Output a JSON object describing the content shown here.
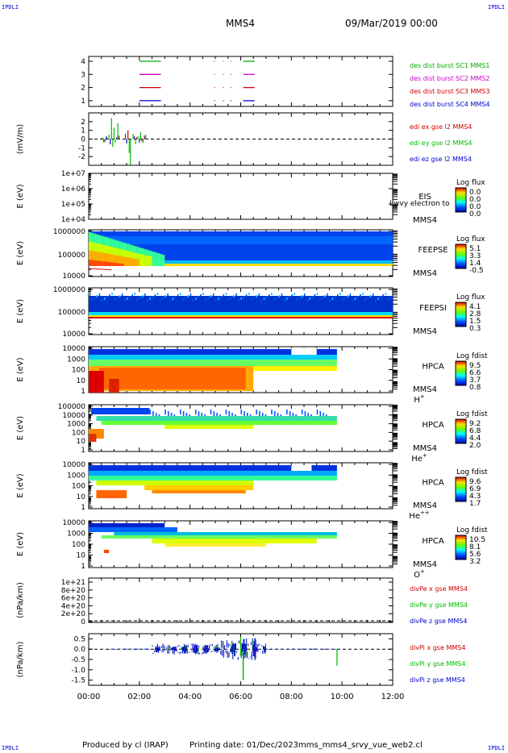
{
  "header": {
    "corner_left_top": "IPDLI",
    "corner_right_top": "IPDLI",
    "corner_left_bottom": "IPDLI",
    "corner_right_bottom": "IPDLI",
    "spacecraft": "MMS4",
    "date": "09/Mar/2019 00:00"
  },
  "footer": {
    "produced": "Produced by cl (IRAP)",
    "printing": "Printing date: 01/Dec/2023",
    "file": "mms_mms4_srvy_vue_web2.cl"
  },
  "colors": {
    "mms1": "#00aa00",
    "mms2": "#cc00cc",
    "mms3": "#cc0000",
    "mms4": "#0000cc",
    "ex": "#cc0000",
    "ey": "#00bb00",
    "ez": "#0000cc"
  },
  "chart_data": [
    {
      "id": "burst",
      "type": "line",
      "yticks": [
        "4",
        "3",
        "2",
        "1"
      ],
      "legend": [
        "des dist burst SC1 MMS1",
        "des dist burst SC2 MMS2",
        "des dist burst SC3 MMS3",
        "des dist burst SC4 MMS4"
      ],
      "series": [
        {
          "name": "des dist burst SC1 MMS1",
          "level": 4,
          "segments": [
            [
              2.0,
              2.85
            ],
            [
              4.95,
              4.98
            ],
            [
              5.3,
              5.33
            ],
            [
              5.6,
              5.63
            ],
            [
              6.1,
              6.55
            ]
          ]
        },
        {
          "name": "des dist burst SC2 MMS2",
          "level": 3,
          "segments": [
            [
              2.0,
              2.85
            ],
            [
              4.95,
              4.98
            ],
            [
              5.3,
              5.33
            ],
            [
              5.6,
              5.63
            ],
            [
              6.1,
              6.55
            ]
          ]
        },
        {
          "name": "des dist burst SC3 MMS3",
          "level": 2,
          "segments": [
            [
              2.0,
              2.85
            ],
            [
              4.95,
              4.98
            ],
            [
              5.3,
              5.33
            ],
            [
              5.6,
              5.63
            ],
            [
              6.1,
              6.55
            ]
          ]
        },
        {
          "name": "des dist burst SC4 MMS4",
          "level": 1,
          "segments": [
            [
              2.0,
              2.85
            ],
            [
              4.95,
              4.98
            ],
            [
              5.3,
              5.33
            ],
            [
              5.6,
              5.63
            ],
            [
              6.1,
              6.55
            ]
          ]
        }
      ]
    },
    {
      "id": "edi",
      "type": "line",
      "ylabel": "(mV/m)",
      "yticks": [
        "2",
        "1",
        "0",
        "-1",
        "-2"
      ],
      "ylim": [
        -3,
        3
      ],
      "legend": [
        "edi ex gse l2 MMS4",
        "edi ey gse l2 MMS4",
        "edi ez gse l2 MMS4"
      ],
      "series": [
        {
          "name": "edi ex gse l2 MMS4",
          "points": [
            [
              0.5,
              0.1
            ],
            [
              0.6,
              -0.4
            ],
            [
              0.7,
              0.3
            ],
            [
              1.2,
              0.4
            ],
            [
              1.45,
              0.6
            ],
            [
              1.55,
              1.0
            ],
            [
              1.9,
              0.2
            ],
            [
              2.1,
              -0.3
            ],
            [
              2.2,
              0.4
            ]
          ]
        },
        {
          "name": "edi ey gse l2 MMS4",
          "points": [
            [
              0.55,
              0.2
            ],
            [
              0.65,
              -0.3
            ],
            [
              0.8,
              0.5
            ],
            [
              0.9,
              2.4
            ],
            [
              0.95,
              -0.9
            ],
            [
              1.0,
              1.3
            ],
            [
              1.05,
              -0.4
            ],
            [
              1.15,
              1.8
            ],
            [
              1.6,
              -1.6
            ],
            [
              1.65,
              -3.0
            ],
            [
              1.75,
              0.6
            ],
            [
              1.85,
              -0.6
            ],
            [
              1.95,
              0.3
            ],
            [
              2.05,
              0.8
            ],
            [
              2.15,
              -0.4
            ],
            [
              2.25,
              0.5
            ]
          ]
        },
        {
          "name": "edi ez gse l2 MMS4",
          "points": [
            [
              0.6,
              -0.2
            ],
            [
              0.7,
              0.3
            ],
            [
              0.85,
              -0.6
            ],
            [
              1.1,
              0.2
            ],
            [
              1.5,
              -0.5
            ],
            [
              1.8,
              0.3
            ],
            [
              2.0,
              -0.4
            ],
            [
              2.2,
              0.2
            ]
          ]
        }
      ]
    },
    {
      "id": "eis",
      "type": "heatmap",
      "ylabel": "E (eV)",
      "yticks": [
        "1e+07",
        "1e+06",
        "1e+05",
        "1e+04"
      ],
      "instrument": "EIS",
      "overlay": "Lwvy electron to",
      "spacecraft": "MMS4",
      "colorbar_title": "Log flux",
      "colorbar_ticks": [
        "0.0",
        "0.0",
        "0.0",
        "0.0"
      ]
    },
    {
      "id": "feepse",
      "type": "heatmap",
      "ylabel": "E (eV)",
      "yticks": [
        "1000000",
        "100000",
        "10000"
      ],
      "instrument": "FEEPSE",
      "spacecraft": "MMS4",
      "colorbar_title": "Log flux",
      "colorbar_ticks": [
        "5.1",
        "3.3",
        "1.4",
        "-0.5"
      ]
    },
    {
      "id": "feepsi",
      "type": "heatmap",
      "ylabel": "E (eV)",
      "yticks": [
        "1000000",
        "100000",
        "10000"
      ],
      "instrument": "FEEPSI",
      "spacecraft": "MMS4",
      "colorbar_title": "Log flux",
      "colorbar_ticks": [
        "4.1",
        "2.8",
        "1.5",
        "0.3"
      ]
    },
    {
      "id": "hpca_h",
      "type": "heatmap",
      "ylabel": "E (eV)",
      "yticks": [
        "10000",
        "1000",
        "100",
        "10",
        "1"
      ],
      "instrument": "HPCA",
      "spacecraft": "MMS4",
      "species": "H",
      "species_sup": "+",
      "colorbar_title": "Log fdist",
      "colorbar_ticks": [
        "9.5",
        "6.6",
        "3.7",
        "0.8"
      ]
    },
    {
      "id": "hpca_he",
      "type": "heatmap",
      "ylabel": "E (eV)",
      "yticks": [
        "100000",
        "10000",
        "1000",
        "100",
        "10",
        "1"
      ],
      "instrument": "HPCA",
      "spacecraft": "MMS4",
      "species": "He",
      "species_sup": "+",
      "colorbar_title": "Log fdist",
      "colorbar_ticks": [
        "9.2",
        "6.8",
        "4.4",
        "2.0"
      ]
    },
    {
      "id": "hpca_hepp",
      "type": "heatmap",
      "ylabel": "E (eV)",
      "yticks": [
        "10000",
        "1000",
        "100",
        "10",
        "1"
      ],
      "instrument": "HPCA",
      "spacecraft": "MMS4",
      "species": "He",
      "species_sup": "++",
      "colorbar_title": "Log fdist",
      "colorbar_ticks": [
        "9.6",
        "6.9",
        "4.3",
        "1.7"
      ]
    },
    {
      "id": "hpca_o",
      "type": "heatmap",
      "ylabel": "E (eV)",
      "yticks": [
        "10000",
        "1000",
        "100",
        "10",
        "1"
      ],
      "instrument": "HPCA",
      "spacecraft": "MMS4",
      "species": "O",
      "species_sup": "+",
      "colorbar_title": "Log fdist",
      "colorbar_ticks": [
        "10.5",
        "8.1",
        "5.6",
        "3.2"
      ]
    },
    {
      "id": "divpe",
      "type": "line",
      "ylabel": "(nPa/km)",
      "yticks": [
        "1e+21",
        "8e+20",
        "6e+20",
        "4e+20",
        "2e+20",
        "0"
      ],
      "legend": [
        "divPe x gse MMS4",
        "divPe y gse MMS4",
        "divPe z gse MMS4"
      ]
    },
    {
      "id": "divpi",
      "type": "line",
      "ylabel": "(nPa/km)",
      "yticks": [
        "0.5",
        "0.0",
        "-0.5",
        "-1.0",
        "-1.5"
      ],
      "ylim": [
        -1.75,
        0.75
      ],
      "legend": [
        "divPi x gse MMS4",
        "divPi y gse MMS4",
        "divPi z gse MMS4"
      ]
    }
  ],
  "time_axis": {
    "range_hours": [
      0,
      12
    ],
    "ticks": [
      "00:00",
      "02:00",
      "04:00",
      "06:00",
      "08:00",
      "10:00",
      "12:00"
    ]
  }
}
